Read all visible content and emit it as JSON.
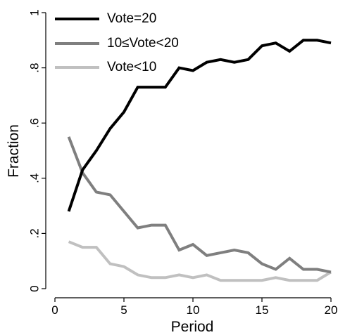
{
  "chart_data": {
    "type": "line",
    "xlabel": "Period",
    "ylabel": "Fraction",
    "xlim": [
      0,
      20
    ],
    "ylim": [
      0,
      1
    ],
    "xticks": [
      0,
      5,
      10,
      15,
      20
    ],
    "xtick_labels": [
      "0",
      "5",
      "10",
      "15",
      "20"
    ],
    "yticks": [
      0,
      0.2,
      0.4,
      0.6,
      0.8,
      1
    ],
    "ytick_labels": [
      "0",
      ".2",
      ".4",
      ".6",
      ".8",
      "1"
    ],
    "grid": false,
    "legend_position": "top-left",
    "x": [
      1,
      2,
      3,
      4,
      5,
      6,
      7,
      8,
      9,
      10,
      11,
      12,
      13,
      14,
      15,
      16,
      17,
      18,
      19,
      20
    ],
    "series": [
      {
        "name": "Vote=20",
        "color": "#000000",
        "values": [
          0.28,
          0.43,
          0.5,
          0.58,
          0.64,
          0.73,
          0.73,
          0.73,
          0.8,
          0.79,
          0.82,
          0.83,
          0.82,
          0.83,
          0.88,
          0.89,
          0.86,
          0.9,
          0.9,
          0.89
        ]
      },
      {
        "name": "10≤Vote<20",
        "color": "#7f7f7f",
        "values": [
          0.55,
          0.42,
          0.35,
          0.34,
          0.28,
          0.22,
          0.23,
          0.23,
          0.14,
          0.16,
          0.12,
          0.13,
          0.14,
          0.13,
          0.09,
          0.07,
          0.11,
          0.07,
          0.07,
          0.06
        ]
      },
      {
        "name": "Vote<10",
        "color": "#c0c0c0",
        "values": [
          0.17,
          0.15,
          0.15,
          0.09,
          0.08,
          0.05,
          0.04,
          0.04,
          0.05,
          0.04,
          0.05,
          0.03,
          0.03,
          0.03,
          0.03,
          0.04,
          0.03,
          0.03,
          0.03,
          0.06
        ]
      }
    ]
  }
}
